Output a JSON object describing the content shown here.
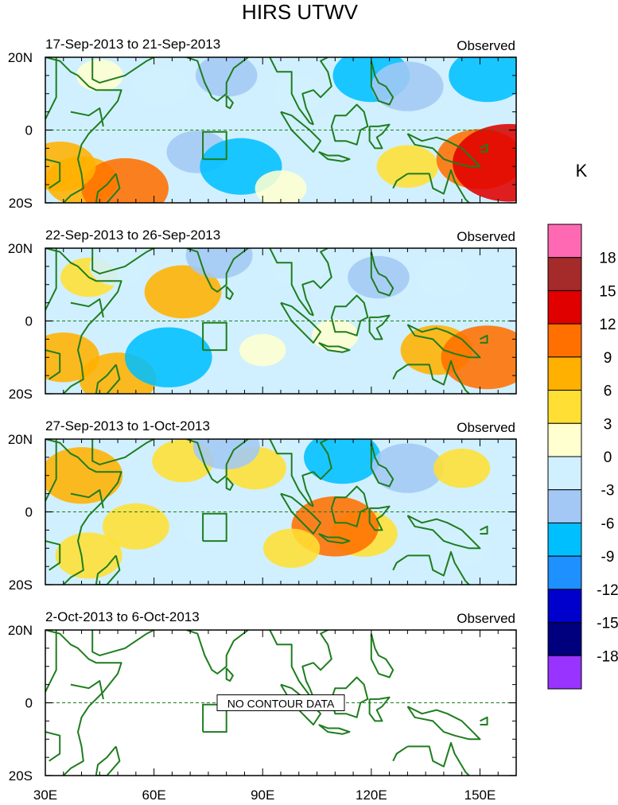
{
  "chart_data": {
    "type": "heatmap",
    "title": "HIRS UTWV",
    "units": "K",
    "xlim": [
      30,
      160
    ],
    "ylim": [
      -20,
      20
    ],
    "x_ticks": [
      30,
      60,
      90,
      120,
      150
    ],
    "x_tick_labels": [
      "30E",
      "60E",
      "90E",
      "120E",
      "150E"
    ],
    "y_ticks": [
      20,
      0,
      -20
    ],
    "y_tick_labels": [
      "20N",
      "0",
      "20S"
    ],
    "colorbar": {
      "colors": [
        "#9933ff",
        "#00007f",
        "#0000cc",
        "#1e90ff",
        "#00bfff",
        "#a3c8f5",
        "#d0f0ff",
        "#ffffd0",
        "#ffdf33",
        "#ffb000",
        "#ff7000",
        "#e00000",
        "#a52a2a",
        "#ff69b4"
      ],
      "levels": [
        "18",
        "15",
        "12",
        "9",
        "6",
        "3",
        "0",
        "-3",
        "-6",
        "-9",
        "-12",
        "-15",
        "-18"
      ]
    },
    "panels": [
      {
        "title": "17-Sep-2013 to 21-Sep-2013",
        "label": "Observed",
        "has_data": true,
        "anomalies": [
          {
            "lon": 40,
            "lat": -14,
            "value": 6
          },
          {
            "lon": 52,
            "lat": -16,
            "value": 9
          },
          {
            "lon": 34,
            "lat": -10,
            "value": 6
          },
          {
            "lon": 45,
            "lat": 15,
            "value": 1
          },
          {
            "lon": 62,
            "lat": 12,
            "value": -3
          },
          {
            "lon": 80,
            "lat": 15,
            "value": -4
          },
          {
            "lon": 72,
            "lat": -6,
            "value": -4
          },
          {
            "lon": 84,
            "lat": -10,
            "value": -8
          },
          {
            "lon": 100,
            "lat": 10,
            "value": -2
          },
          {
            "lon": 120,
            "lat": 15,
            "value": -7
          },
          {
            "lon": 130,
            "lat": 12,
            "value": -6
          },
          {
            "lon": 152,
            "lat": 15,
            "value": -7
          },
          {
            "lon": 112,
            "lat": 0,
            "value": -3
          },
          {
            "lon": 130,
            "lat": -10,
            "value": 4
          },
          {
            "lon": 150,
            "lat": -8,
            "value": 9
          },
          {
            "lon": 158,
            "lat": -9,
            "value": 14
          },
          {
            "lon": 95,
            "lat": -16,
            "value": 2
          }
        ]
      },
      {
        "title": "22-Sep-2013 to 26-Sep-2013",
        "label": "Observed",
        "has_data": true,
        "anomalies": [
          {
            "lon": 35,
            "lat": -10,
            "value": 6
          },
          {
            "lon": 50,
            "lat": -16,
            "value": 7
          },
          {
            "lon": 42,
            "lat": 12,
            "value": 3
          },
          {
            "lon": 68,
            "lat": 8,
            "value": 7
          },
          {
            "lon": 50,
            "lat": 15,
            "value": -3
          },
          {
            "lon": 78,
            "lat": 18,
            "value": -5
          },
          {
            "lon": 64,
            "lat": -10,
            "value": -9
          },
          {
            "lon": 100,
            "lat": 15,
            "value": -3
          },
          {
            "lon": 122,
            "lat": 12,
            "value": -4
          },
          {
            "lon": 140,
            "lat": 12,
            "value": -3
          },
          {
            "lon": 90,
            "lat": -8,
            "value": 1
          },
          {
            "lon": 110,
            "lat": -4,
            "value": 1
          },
          {
            "lon": 138,
            "lat": -8,
            "value": 6
          },
          {
            "lon": 152,
            "lat": -10,
            "value": 10
          }
        ]
      },
      {
        "title": "27-Sep-2013 to 1-Oct-2013",
        "label": "Observed",
        "has_data": true,
        "anomalies": [
          {
            "lon": 40,
            "lat": 10,
            "value": 8
          },
          {
            "lon": 42,
            "lat": -12,
            "value": 5
          },
          {
            "lon": 55,
            "lat": -4,
            "value": 5
          },
          {
            "lon": 68,
            "lat": 14,
            "value": 4
          },
          {
            "lon": 88,
            "lat": 12,
            "value": 4
          },
          {
            "lon": 80,
            "lat": 18,
            "value": -5
          },
          {
            "lon": 75,
            "lat": -5,
            "value": -2
          },
          {
            "lon": 112,
            "lat": 15,
            "value": -7
          },
          {
            "lon": 130,
            "lat": 12,
            "value": -6
          },
          {
            "lon": 118,
            "lat": -6,
            "value": 5
          },
          {
            "lon": 110,
            "lat": -4,
            "value": 9
          },
          {
            "lon": 145,
            "lat": 12,
            "value": 3
          },
          {
            "lon": 98,
            "lat": -10,
            "value": 3
          },
          {
            "lon": 145,
            "lat": -10,
            "value": -2
          }
        ]
      },
      {
        "title": "2-Oct-2013 to 6-Oct-2013",
        "label": "Observed",
        "has_data": false,
        "no_data_text": "NO CONTOUR DATA",
        "anomalies": []
      }
    ]
  }
}
